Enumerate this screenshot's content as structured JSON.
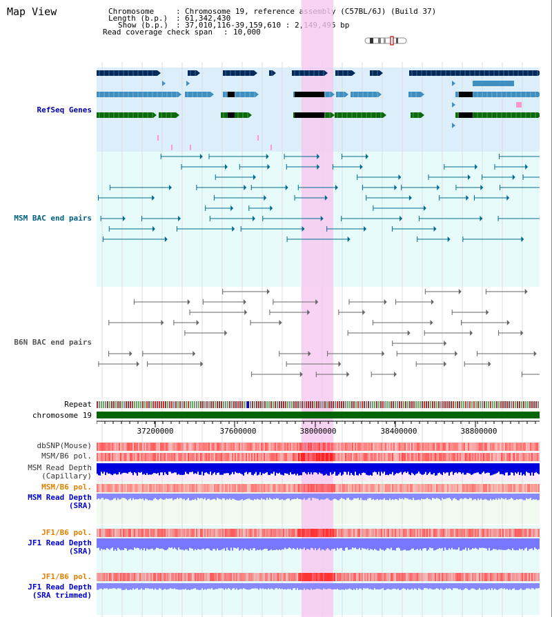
{
  "page": {
    "title": "Map View"
  },
  "header": {
    "chromosome_label": "Chromosome",
    "chromosome_value": "Chromosome 19, reference assembly (C57BL/6J) (Build 37)",
    "length_label": "Length (b.p.)",
    "length_value": "61,342,430",
    "show_label": "Show (b.p.)",
    "show_value": "37,010,116-39,159,610 : 2,149,495 bp",
    "coverage_label": "Read coverage check span",
    "coverage_value": "10,000",
    "sep": ":"
  },
  "tracks": {
    "refseq": "RefSeq Genes",
    "msm_bac": "MSM BAC end pairs",
    "b6n_bac": "B6N BAC end pairs",
    "repeat": "Repeat",
    "chromosome": "chromosome 19",
    "dbsnp": "dbSNP(Mouse)",
    "msm_pol": "MSM/B6 pol.",
    "msm_depth_cap_1": "MSM Read Depth",
    "msm_depth_cap_2": "(Capillary)",
    "msm_pol2": "MSM/B6 pol.",
    "msm_depth_sra_1": "MSM Read Depth",
    "msm_depth_sra_2": "(SRA)",
    "jf1_pol": "JF1/B6 pol.",
    "jf1_depth_sra_1": "JF1 Read Depth",
    "jf1_depth_sra_2": "(SRA)",
    "jf1_pol2": "JF1/B6 pol.",
    "jf1_depth_trim_1": "JF1 Read Depth",
    "jf1_depth_trim_2": "(SRA trimmed)"
  },
  "axis": {
    "ticks": [
      "37200000",
      "37600000",
      "38000000",
      "38400000",
      "38800000"
    ]
  },
  "colors": {
    "refseq_label": "#0000aa",
    "msm_label": "#006080",
    "b6n_label": "#555555",
    "orange_label": "#e08000",
    "blue_label": "#0000cc",
    "highlight": "#f8c8f0",
    "chromosome_bar": "#006400"
  }
}
